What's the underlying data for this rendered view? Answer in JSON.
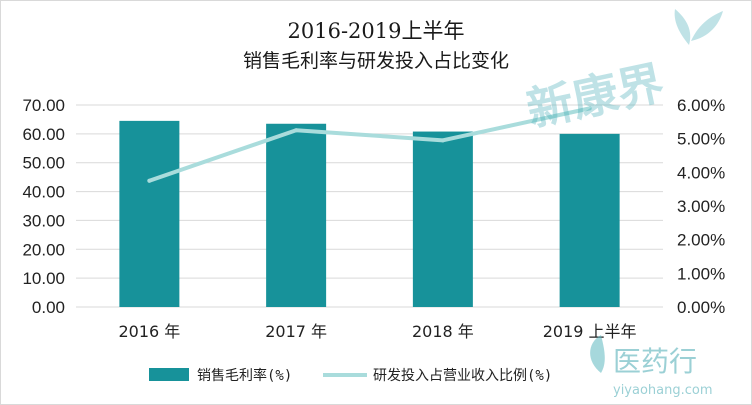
{
  "chart_data": {
    "type": "bar",
    "title": [
      "2016-2019上半年",
      "销售毛利率与研发投入占比变化"
    ],
    "categories": [
      "2016 年",
      "2017 年",
      "2018 年",
      "2019 上半年"
    ],
    "series": [
      {
        "name": "销售毛利率(%)",
        "type": "bar",
        "axis": "left",
        "values": [
          64.5,
          63.5,
          60.8,
          60.0
        ],
        "color": "#17929a"
      },
      {
        "name": "研发投入占营业收入比例(%)",
        "type": "line",
        "axis": "right",
        "values": [
          0.0375,
          0.0525,
          0.0495,
          0.059
        ],
        "color": "#a9dcdc"
      }
    ],
    "y_left": {
      "min": 0,
      "max": 70,
      "step": 10,
      "ticks": [
        "0.00",
        "10.00",
        "20.00",
        "30.00",
        "40.00",
        "50.00",
        "60.00",
        "70.00"
      ]
    },
    "y_right": {
      "min": 0,
      "max": 0.06,
      "step": 0.01,
      "ticks": [
        "0.00%",
        "1.00%",
        "2.00%",
        "3.00%",
        "4.00%",
        "5.00%",
        "6.00%"
      ]
    },
    "grid": true,
    "legend_position": "bottom"
  },
  "watermarks": {
    "top": "新康界",
    "bottom_main": "医药行",
    "bottom_sub": "yiyaohang.com"
  }
}
